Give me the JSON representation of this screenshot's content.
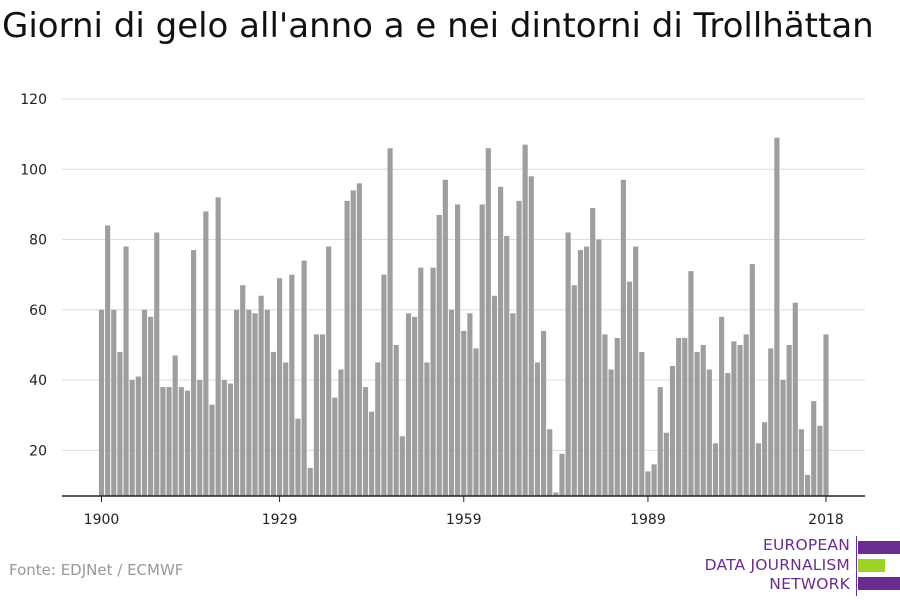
{
  "title": "Giorni di gelo all'anno a e nei dintorni di Trollhättan",
  "source": "Fonte: EDJNet / ECMWF",
  "logo": {
    "lines": [
      "EUROPEAN",
      "DATA JOURNALISM",
      "NETWORK"
    ],
    "colors": {
      "purple": "#6a2c91",
      "green": "#9ed125"
    }
  },
  "colors": {
    "bar": "#9e9e9e",
    "grid": "#dddddd",
    "axis": "#222222"
  },
  "chart_data": {
    "type": "bar",
    "title": "Giorni di gelo all'anno a e nei dintorni di Trollhättan",
    "xlabel": "",
    "ylabel": "",
    "x_start": 1900,
    "x_end": 2018,
    "x_ticks": [
      1900,
      1929,
      1959,
      1989,
      2018
    ],
    "y_ticks": [
      20,
      40,
      60,
      80,
      100,
      120
    ],
    "ylim": [
      7,
      120
    ],
    "grid": true,
    "legend": "none",
    "x": [
      1900,
      1901,
      1902,
      1903,
      1904,
      1905,
      1906,
      1907,
      1908,
      1909,
      1910,
      1911,
      1912,
      1913,
      1914,
      1915,
      1916,
      1917,
      1918,
      1919,
      1920,
      1921,
      1922,
      1923,
      1924,
      1925,
      1926,
      1927,
      1928,
      1929,
      1930,
      1931,
      1932,
      1933,
      1934,
      1935,
      1936,
      1937,
      1938,
      1939,
      1940,
      1941,
      1942,
      1943,
      1944,
      1945,
      1946,
      1947,
      1948,
      1949,
      1950,
      1951,
      1952,
      1953,
      1954,
      1955,
      1956,
      1957,
      1958,
      1959,
      1960,
      1961,
      1962,
      1963,
      1964,
      1965,
      1966,
      1967,
      1968,
      1969,
      1970,
      1971,
      1972,
      1973,
      1974,
      1975,
      1976,
      1977,
      1978,
      1979,
      1980,
      1981,
      1982,
      1983,
      1984,
      1985,
      1986,
      1987,
      1988,
      1989,
      1990,
      1991,
      1992,
      1993,
      1994,
      1995,
      1996,
      1997,
      1998,
      1999,
      2000,
      2001,
      2002,
      2003,
      2004,
      2005,
      2006,
      2007,
      2008,
      2009,
      2010,
      2011,
      2012,
      2013,
      2014,
      2015,
      2016,
      2017,
      2018
    ],
    "values": [
      60,
      84,
      60,
      48,
      78,
      40,
      41,
      60,
      58,
      82,
      38,
      38,
      47,
      38,
      37,
      77,
      40,
      88,
      33,
      92,
      40,
      39,
      60,
      67,
      60,
      59,
      64,
      60,
      48,
      69,
      45,
      70,
      29,
      74,
      15,
      53,
      53,
      78,
      35,
      43,
      91,
      94,
      96,
      38,
      31,
      45,
      70,
      106,
      50,
      24,
      59,
      58,
      72,
      45,
      72,
      87,
      97,
      60,
      90,
      54,
      59,
      49,
      90,
      106,
      64,
      95,
      81,
      59,
      91,
      107,
      98,
      45,
      54,
      26,
      8,
      19,
      82,
      67,
      77,
      78,
      89,
      80,
      53,
      43,
      52,
      97,
      68,
      78,
      48,
      14,
      16,
      38,
      25,
      44,
      52,
      52,
      71,
      48,
      50,
      43,
      22,
      58,
      42,
      51,
      50,
      53,
      73,
      22,
      28,
      49,
      109,
      40,
      50,
      62,
      26,
      13,
      34,
      27,
      53
    ]
  }
}
